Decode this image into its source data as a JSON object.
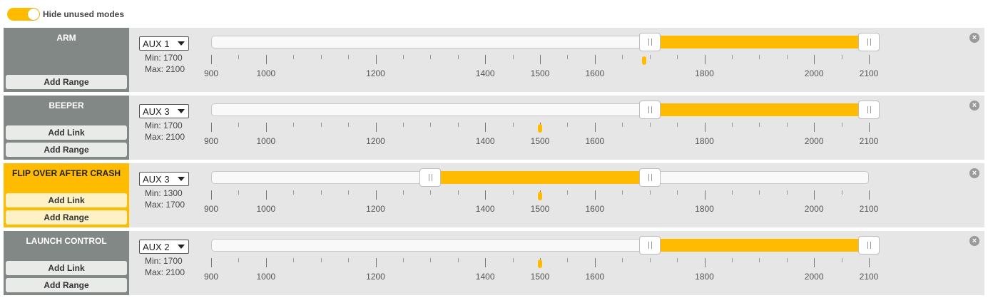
{
  "colors": {
    "accent": "#ffbb00",
    "mode_inactive": "#828885",
    "row_bg": "#e6e6e6"
  },
  "top": {
    "toggle_label": "Hide unused modes",
    "toggle_on": true
  },
  "scale": {
    "min": 900,
    "max": 2100,
    "labels": [
      "900",
      "1000",
      "1200",
      "1400",
      "1500",
      "1600",
      "1800",
      "2000",
      "2100"
    ]
  },
  "modes": [
    {
      "name": "ARM",
      "active": false,
      "buttons": [
        "Add Range"
      ],
      "aux": "AUX 1",
      "min_label": "Min: 1700",
      "max_label": "Max: 2100",
      "range_min": 1700,
      "range_max": 2100,
      "channel_value": 1690,
      "remove_icon": "close-icon"
    },
    {
      "name": "BEEPER",
      "active": false,
      "buttons": [
        "Add Link",
        "Add Range"
      ],
      "aux": "AUX 3",
      "min_label": "Min: 1700",
      "max_label": "Max: 2100",
      "range_min": 1700,
      "range_max": 2100,
      "channel_value": 1500,
      "remove_icon": "close-icon"
    },
    {
      "name": "FLIP OVER AFTER CRASH",
      "active": true,
      "buttons": [
        "Add Link",
        "Add Range"
      ],
      "aux": "AUX 3",
      "min_label": "Min: 1300",
      "max_label": "Max: 1700",
      "range_min": 1300,
      "range_max": 1700,
      "channel_value": 1500,
      "remove_icon": "close-icon"
    },
    {
      "name": "LAUNCH CONTROL",
      "active": false,
      "buttons": [
        "Add Link",
        "Add Range"
      ],
      "aux": "AUX 2",
      "min_label": "Min: 1700",
      "max_label": "Max: 2100",
      "range_min": 1700,
      "range_max": 2100,
      "channel_value": 1500,
      "remove_icon": "close-icon"
    }
  ]
}
